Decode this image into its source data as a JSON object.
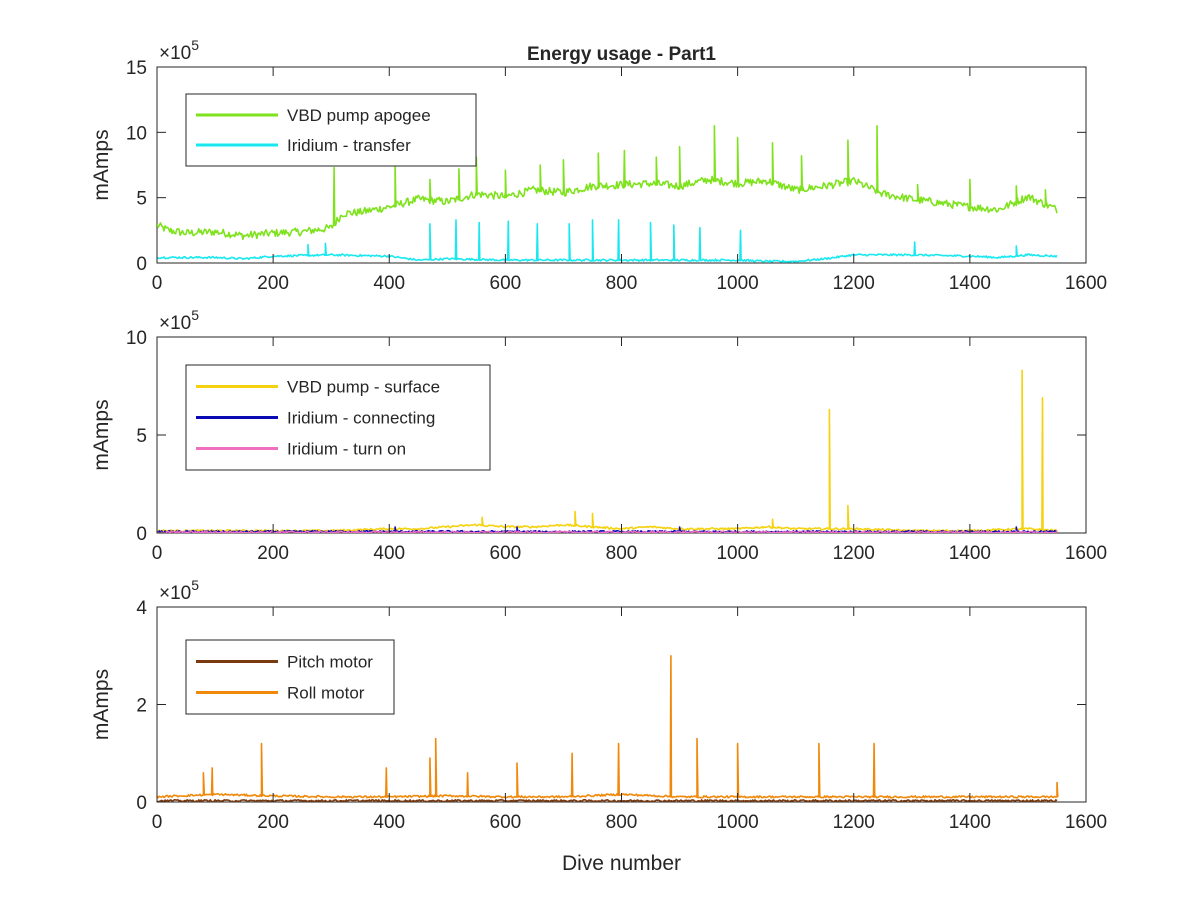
{
  "chart_data": [
    {
      "type": "line",
      "title": "Energy usage - Part1",
      "xlabel": "",
      "ylabel": "mAmps",
      "xlim": [
        0,
        1600
      ],
      "ylim": [
        0,
        15
      ],
      "xticks": [
        "0",
        "200",
        "400",
        "600",
        "800",
        "1000",
        "1200",
        "1400",
        "1600"
      ],
      "yticks": [
        "0",
        "5",
        "10",
        "15"
      ],
      "yexponent_base": "×10",
      "yexponent_power": "5",
      "legend_position": "top-left",
      "series": [
        {
          "name": "VBD pump apogee",
          "color": "#7ee21c",
          "kind": "baseline",
          "x": [
            0,
            20,
            50,
            100,
            150,
            200,
            250,
            300,
            320,
            350,
            400,
            450,
            500,
            550,
            600,
            650,
            700,
            750,
            800,
            850,
            900,
            950,
            1000,
            1050,
            1100,
            1150,
            1200,
            1250,
            1300,
            1350,
            1400,
            1450,
            1500,
            1550
          ],
          "values": [
            2.8,
            2.4,
            2.2,
            2.3,
            2.0,
            2.2,
            2.3,
            2.6,
            3.7,
            3.8,
            4.2,
            4.8,
            4.6,
            5.2,
            5.0,
            5.5,
            5.3,
            5.8,
            5.9,
            6.0,
            5.8,
            6.3,
            6.0,
            6.2,
            5.5,
            5.8,
            6.2,
            5.2,
            4.8,
            4.5,
            4.2,
            4.0,
            5.0,
            4.0
          ],
          "peaks": [
            [
              305,
              7.3
            ],
            [
              410,
              7.5
            ],
            [
              470,
              6.4
            ],
            [
              520,
              7.2
            ],
            [
              550,
              8.1
            ],
            [
              600,
              7.1
            ],
            [
              660,
              7.5
            ],
            [
              700,
              7.9
            ],
            [
              760,
              8.4
            ],
            [
              805,
              8.6
            ],
            [
              860,
              8.1
            ],
            [
              900,
              8.9
            ],
            [
              960,
              10.5
            ],
            [
              1000,
              9.6
            ],
            [
              1060,
              9.2
            ],
            [
              1110,
              8.2
            ],
            [
              1190,
              9.4
            ],
            [
              1240,
              10.5
            ],
            [
              1310,
              6.0
            ],
            [
              1400,
              6.4
            ],
            [
              1480,
              5.9
            ],
            [
              1530,
              5.6
            ]
          ]
        },
        {
          "name": "Iridium - transfer",
          "color": "#19e8f0",
          "kind": "baseline",
          "x": [
            0,
            100,
            150,
            200,
            300,
            400,
            450,
            500,
            600,
            700,
            800,
            900,
            1000,
            1050,
            1100,
            1150,
            1200,
            1300,
            1400,
            1450,
            1500,
            1550
          ],
          "values": [
            0.4,
            0.4,
            0.3,
            0.5,
            0.6,
            0.5,
            0.2,
            0.3,
            0.2,
            0.2,
            0.2,
            0.2,
            0.2,
            0.1,
            0.1,
            0.3,
            0.6,
            0.6,
            0.5,
            0.4,
            0.6,
            0.5
          ],
          "peaks": [
            [
              260,
              1.4
            ],
            [
              290,
              1.5
            ],
            [
              470,
              3.0
            ],
            [
              515,
              3.3
            ],
            [
              555,
              3.1
            ],
            [
              605,
              3.2
            ],
            [
              655,
              3.0
            ],
            [
              710,
              3.0
            ],
            [
              750,
              3.3
            ],
            [
              795,
              3.3
            ],
            [
              850,
              3.1
            ],
            [
              890,
              2.9
            ],
            [
              935,
              2.7
            ],
            [
              1005,
              2.5
            ],
            [
              1305,
              1.6
            ],
            [
              1480,
              1.3
            ]
          ]
        }
      ]
    },
    {
      "type": "line",
      "title": "",
      "xlabel": "",
      "ylabel": "mAmps",
      "xlim": [
        0,
        1600
      ],
      "ylim": [
        0,
        10
      ],
      "xticks": [
        "0",
        "200",
        "400",
        "600",
        "800",
        "1000",
        "1200",
        "1400",
        "1600"
      ],
      "yticks": [
        "0",
        "5",
        "10"
      ],
      "yexponent_base": "×10",
      "yexponent_power": "5",
      "legend_position": "top-left",
      "series": [
        {
          "name": "VBD pump - surface",
          "color": "#f5d20f",
          "kind": "baseline",
          "x": [
            0,
            100,
            200,
            300,
            400,
            450,
            500,
            550,
            600,
            650,
            700,
            750,
            800,
            850,
            900,
            950,
            1000,
            1050,
            1100,
            1150,
            1200,
            1300,
            1400,
            1500,
            1550
          ],
          "values": [
            0.1,
            0.1,
            0.1,
            0.1,
            0.2,
            0.2,
            0.3,
            0.4,
            0.3,
            0.3,
            0.4,
            0.3,
            0.2,
            0.3,
            0.2,
            0.2,
            0.2,
            0.3,
            0.2,
            0.2,
            0.2,
            0.1,
            0.1,
            0.2,
            0.1
          ],
          "peaks": [
            [
              560,
              0.8
            ],
            [
              720,
              1.1
            ],
            [
              750,
              1.0
            ],
            [
              1060,
              0.7
            ],
            [
              1158,
              6.3
            ],
            [
              1190,
              1.4
            ],
            [
              1490,
              8.3
            ],
            [
              1525,
              6.9
            ]
          ]
        },
        {
          "name": "Iridium - connecting",
          "color": "#0a0ab4",
          "kind": "baseline",
          "x": [
            0,
            200,
            400,
            600,
            800,
            1000,
            1200,
            1400,
            1550
          ],
          "values": [
            0.05,
            0.05,
            0.06,
            0.05,
            0.05,
            0.05,
            0.05,
            0.05,
            0.05
          ],
          "peaks": [
            [
              410,
              0.3
            ],
            [
              620,
              0.3
            ],
            [
              900,
              0.3
            ],
            [
              1480,
              0.3
            ]
          ]
        },
        {
          "name": "Iridium - turn on",
          "color": "#f06ec0",
          "kind": "baseline",
          "x": [
            0,
            400,
            800,
            1200,
            1550
          ],
          "values": [
            0.02,
            0.02,
            0.02,
            0.02,
            0.02
          ],
          "peaks": []
        }
      ]
    },
    {
      "type": "line",
      "title": "",
      "xlabel": "Dive number",
      "ylabel": "mAmps",
      "xlim": [
        0,
        1600
      ],
      "ylim": [
        0,
        4
      ],
      "xticks": [
        "0",
        "200",
        "400",
        "600",
        "800",
        "1000",
        "1200",
        "1400",
        "1600"
      ],
      "yticks": [
        "0",
        "2",
        "4"
      ],
      "yexponent_base": "×10",
      "yexponent_power": "5",
      "legend_position": "top-left",
      "series": [
        {
          "name": "Pitch motor",
          "color": "#7a3a10",
          "kind": "baseline",
          "x": [
            0,
            400,
            800,
            1200,
            1550
          ],
          "values": [
            0.02,
            0.02,
            0.02,
            0.02,
            0.02
          ],
          "peaks": []
        },
        {
          "name": "Roll motor",
          "color": "#f0880a",
          "kind": "baseline",
          "x": [
            0,
            100,
            200,
            300,
            400,
            500,
            600,
            700,
            800,
            900,
            1000,
            1100,
            1200,
            1300,
            1400,
            1500,
            1550
          ],
          "values": [
            0.1,
            0.15,
            0.12,
            0.1,
            0.1,
            0.12,
            0.1,
            0.1,
            0.15,
            0.1,
            0.1,
            0.1,
            0.1,
            0.1,
            0.1,
            0.1,
            0.1
          ],
          "peaks": [
            [
              80,
              0.6
            ],
            [
              95,
              0.7
            ],
            [
              180,
              1.2
            ],
            [
              395,
              0.7
            ],
            [
              470,
              0.9
            ],
            [
              480,
              1.3
            ],
            [
              535,
              0.6
            ],
            [
              620,
              0.8
            ],
            [
              715,
              1.0
            ],
            [
              795,
              1.2
            ],
            [
              885,
              3.0
            ],
            [
              930,
              1.3
            ],
            [
              1000,
              1.2
            ],
            [
              1140,
              1.2
            ],
            [
              1235,
              1.2
            ],
            [
              1550,
              0.4
            ]
          ]
        }
      ]
    }
  ]
}
